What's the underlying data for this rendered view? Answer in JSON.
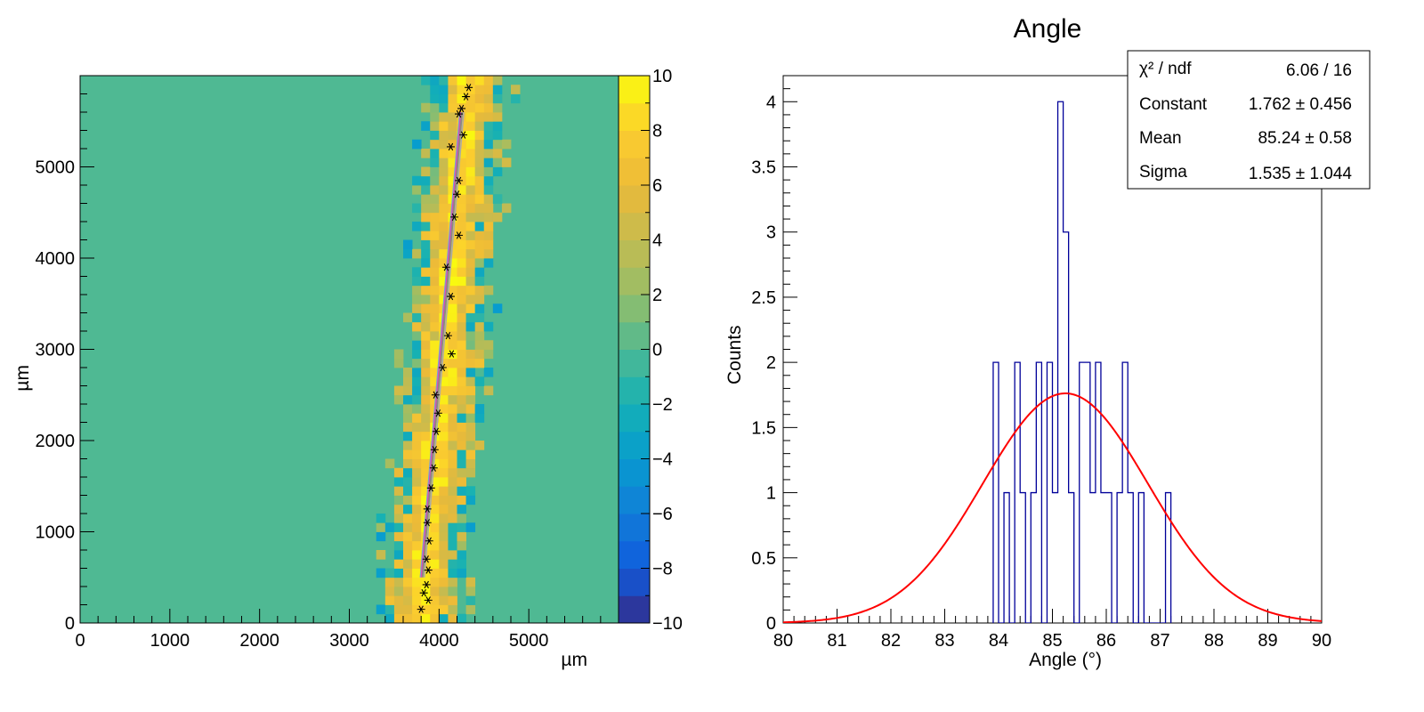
{
  "chart_data": [
    {
      "type": "heatmap",
      "xlabel": "µm",
      "ylabel": "µm",
      "xlim": [
        0,
        6000
      ],
      "ylim": [
        0,
        6000
      ],
      "x_ticks": [
        "0",
        "1000",
        "2000",
        "3000",
        "4000",
        "5000"
      ],
      "y_ticks": [
        "0",
        "1000",
        "2000",
        "3000",
        "4000",
        "5000"
      ],
      "z_range": [
        -10,
        10
      ],
      "colorbar_ticks": [
        "10",
        "8",
        "6",
        "4",
        "2",
        "0",
        "−2",
        "−4",
        "−6",
        "−8",
        "−10"
      ],
      "background_value": 0,
      "track": {
        "x_start": 3800,
        "y_start": 100,
        "x_end": 4330,
        "y_end": 5900,
        "band_halfwidth": 350
      },
      "markers": [
        [
          3800,
          150
        ],
        [
          3880,
          250
        ],
        [
          3830,
          330
        ],
        [
          3860,
          420
        ],
        [
          3880,
          580
        ],
        [
          3860,
          700
        ],
        [
          3890,
          900
        ],
        [
          3870,
          1100
        ],
        [
          3870,
          1250
        ],
        [
          3910,
          1480
        ],
        [
          3940,
          1700
        ],
        [
          3950,
          1900
        ],
        [
          3970,
          2100
        ],
        [
          3990,
          2300
        ],
        [
          3960,
          2500
        ],
        [
          4040,
          2800
        ],
        [
          4140,
          2950
        ],
        [
          4100,
          3150
        ],
        [
          4130,
          3580
        ],
        [
          4080,
          3900
        ],
        [
          4220,
          4250
        ],
        [
          4170,
          4450
        ],
        [
          4200,
          4700
        ],
        [
          4220,
          4850
        ],
        [
          4130,
          5220
        ],
        [
          4270,
          5350
        ],
        [
          4220,
          5580
        ],
        [
          4250,
          5640
        ],
        [
          4300,
          5770
        ],
        [
          4330,
          5870
        ]
      ]
    },
    {
      "type": "bar",
      "title": "Angle",
      "xlabel": "Angle (°)",
      "ylabel": "Counts",
      "xlim": [
        80,
        90
      ],
      "ylim": [
        0,
        4.2
      ],
      "x_ticks": [
        "80",
        "81",
        "82",
        "83",
        "84",
        "85",
        "86",
        "87",
        "88",
        "89",
        "90"
      ],
      "y_ticks": [
        "0",
        "0.5",
        "1",
        "1.5",
        "2",
        "2.5",
        "3",
        "3.5",
        "4"
      ],
      "bin_width": 0.1,
      "bins": [
        [
          83.9,
          2
        ],
        [
          84.0,
          0
        ],
        [
          84.1,
          1
        ],
        [
          84.2,
          0
        ],
        [
          84.3,
          2
        ],
        [
          84.4,
          1
        ],
        [
          84.5,
          0
        ],
        [
          84.6,
          1
        ],
        [
          84.7,
          2
        ],
        [
          84.8,
          0
        ],
        [
          84.9,
          2
        ],
        [
          85.0,
          1
        ],
        [
          85.1,
          4
        ],
        [
          85.2,
          3
        ],
        [
          85.3,
          1
        ],
        [
          85.4,
          0
        ],
        [
          85.5,
          2
        ],
        [
          85.6,
          2
        ],
        [
          85.7,
          1
        ],
        [
          85.8,
          2
        ],
        [
          85.9,
          1
        ],
        [
          86.0,
          1
        ],
        [
          86.1,
          0
        ],
        [
          86.2,
          1
        ],
        [
          86.3,
          2
        ],
        [
          86.4,
          1
        ],
        [
          86.5,
          0
        ],
        [
          86.6,
          1
        ],
        [
          86.7,
          0
        ],
        [
          86.8,
          0
        ],
        [
          86.9,
          0
        ],
        [
          87.0,
          0
        ],
        [
          87.1,
          1
        ]
      ],
      "fit": {
        "function": "gaus",
        "constant": 1.762,
        "mean": 85.24,
        "sigma": 1.535,
        "color": "#ff0000"
      },
      "hist_color": "#000099",
      "stats": [
        {
          "name": "χ² / ndf",
          "value": "6.06 / 16"
        },
        {
          "name": "Constant",
          "value": "1.762 ± 0.456"
        },
        {
          "name": "Mean",
          "value": "85.24 ± 0.58"
        },
        {
          "name": "Sigma",
          "value": "1.535 ± 1.044"
        }
      ]
    }
  ]
}
